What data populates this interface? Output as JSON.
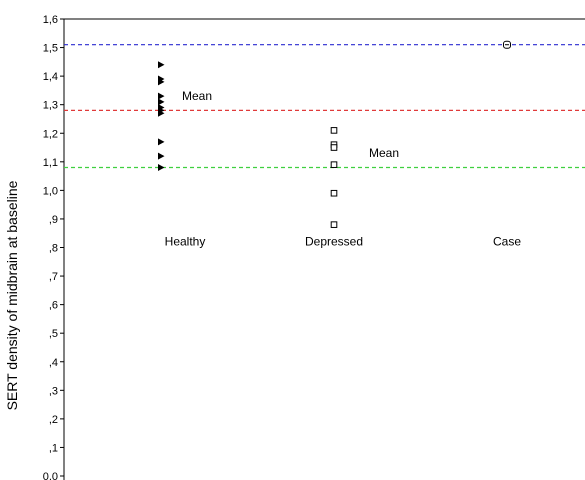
{
  "chart_data": {
    "type": "scatter",
    "ylabel": "SERT density of midbrain at baseline",
    "ylim": [
      0.0,
      1.6
    ],
    "y_ticks": [
      {
        "value": 1.6,
        "label": "1,6"
      },
      {
        "value": 1.5,
        "label": "1,5"
      },
      {
        "value": 1.4,
        "label": "1,4"
      },
      {
        "value": 1.3,
        "label": "1,3"
      },
      {
        "value": 1.2,
        "label": "1,2"
      },
      {
        "value": 1.1,
        "label": "1,1"
      },
      {
        "value": 1.0,
        "label": "1,0"
      },
      {
        "value": 0.9,
        "label": ",9"
      },
      {
        "value": 0.8,
        "label": ",8"
      },
      {
        "value": 0.7,
        "label": ",7"
      },
      {
        "value": 0.6,
        "label": ",6"
      },
      {
        "value": 0.5,
        "label": ",5"
      },
      {
        "value": 0.4,
        "label": ",4"
      },
      {
        "value": 0.3,
        "label": ",3"
      },
      {
        "value": 0.2,
        "label": ",2"
      },
      {
        "value": 0.1,
        "label": ",1"
      },
      {
        "value": 0.0,
        "label": "0,0"
      }
    ],
    "categories": [
      "Healthy",
      "Depressed",
      "Case"
    ],
    "category_label_y": 0.8,
    "series": [
      {
        "category": "Healthy",
        "marker": "triangle",
        "values": [
          1.44,
          1.39,
          1.38,
          1.33,
          1.31,
          1.29,
          1.28,
          1.27,
          1.17,
          1.12,
          1.08
        ]
      },
      {
        "category": "Depressed",
        "marker": "square",
        "values": [
          1.21,
          1.16,
          1.15,
          1.09,
          0.99,
          0.88
        ]
      },
      {
        "category": "Case",
        "marker": "circle-square",
        "values": [
          1.51
        ]
      }
    ],
    "reference_lines": [
      {
        "y": 1.51,
        "color": "#2b2bd0"
      },
      {
        "y": 1.28,
        "color": "#e03a3a"
      },
      {
        "y": 1.08,
        "color": "#3fd03f"
      }
    ],
    "annotations": [
      {
        "text": "Mean",
        "y": 1.33,
        "category": "Healthy"
      },
      {
        "text": "Mean",
        "y": 1.13,
        "category": "Depressed"
      }
    ],
    "grid": false
  }
}
